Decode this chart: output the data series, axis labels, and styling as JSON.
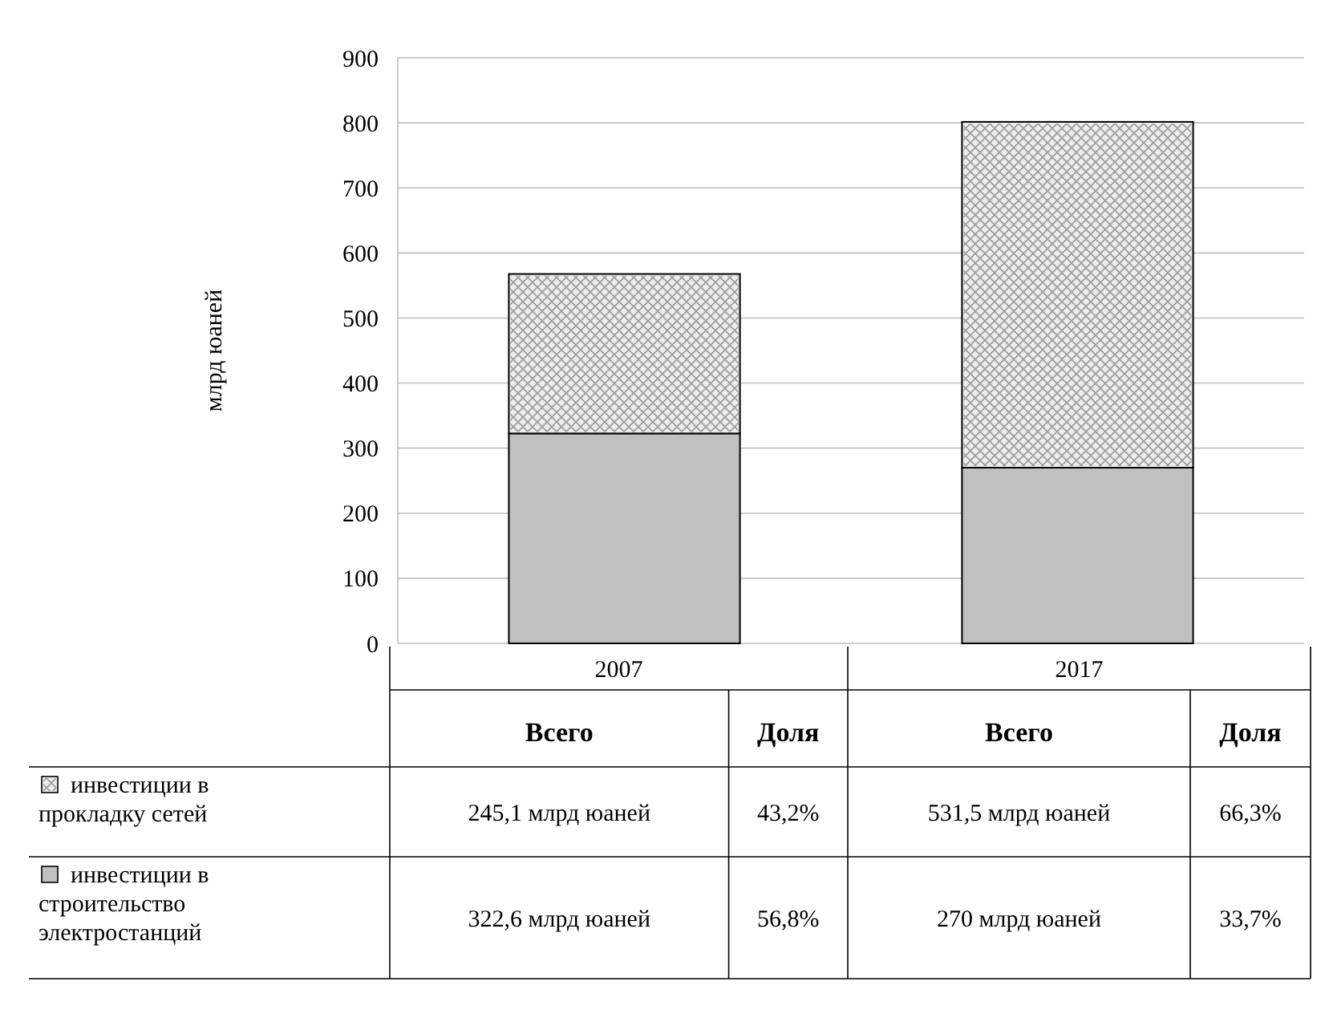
{
  "chart_data": {
    "type": "bar",
    "stacked": true,
    "ylabel": "млрд юаней",
    "categories": [
      "2007",
      "2017"
    ],
    "series": [
      {
        "name": "инвестиции в строительство электростанций",
        "color": "#c0c0c0",
        "values": [
          322.6,
          270
        ],
        "value_labels": [
          "322,6 млрд юаней",
          "270 млрд юаней"
        ]
      },
      {
        "name": "инвестиции в прокладку сетей",
        "color": "#ececec",
        "values": [
          245.1,
          531.5
        ],
        "value_labels": [
          "245,1 млрд юаней",
          "531,5 млрд юаней"
        ]
      }
    ],
    "ylim": [
      0,
      900
    ],
    "yticks": [
      0,
      100,
      200,
      300,
      400,
      500,
      600,
      700,
      800,
      900
    ],
    "grid": "y",
    "legend": "bottom",
    "annotations": [
      "Всего",
      "Доля",
      "43,2%",
      "66,3%",
      "56,8%",
      "33,7%"
    ]
  }
}
